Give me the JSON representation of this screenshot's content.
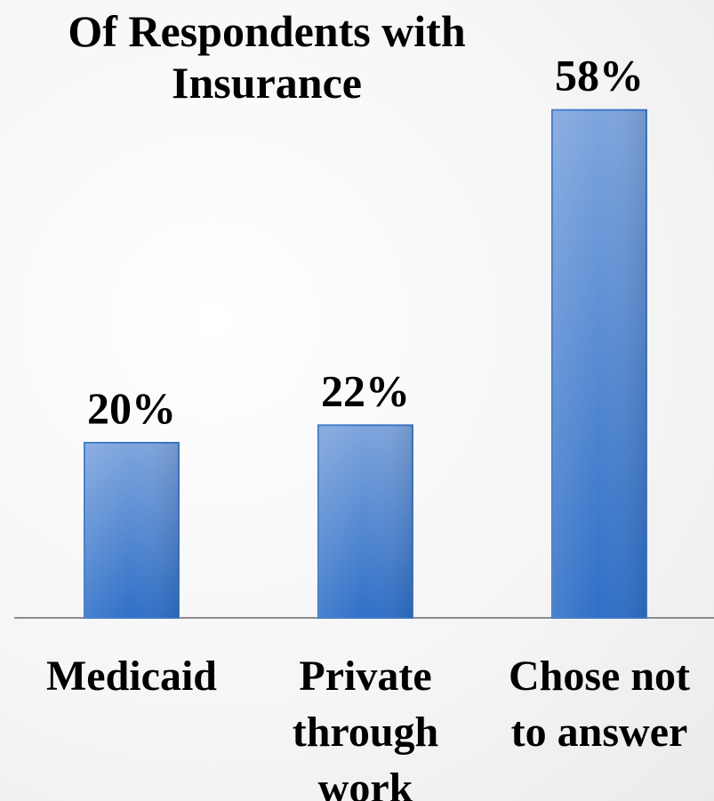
{
  "chart_data": {
    "type": "bar",
    "title": "Of Respondents with Insurance",
    "categories": [
      [
        "Medicaid"
      ],
      [
        "Private",
        "through",
        "work"
      ],
      [
        "Chose not",
        "to answer"
      ]
    ],
    "values": [
      20,
      22,
      58
    ],
    "data_labels": [
      "20%",
      "22%",
      "58%"
    ],
    "xlabel": "",
    "ylabel": "",
    "ylim": [
      0,
      60
    ],
    "grid": false,
    "legend": "none",
    "colors": {
      "bar_top": "#7ea5dd",
      "bar_bottom": "#2f6fc7",
      "bar_edge": "#3f78c8",
      "axis": "#8c8c8c"
    }
  }
}
